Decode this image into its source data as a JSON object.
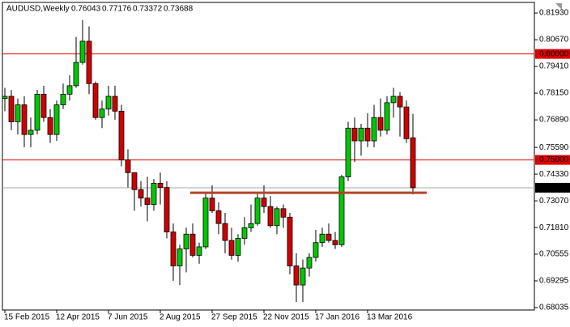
{
  "chart_data": {
    "type": "candlestick",
    "title": "AUDUSD,Weekly",
    "categories": [
      "15 Feb 2015",
      null,
      null,
      null,
      null,
      null,
      null,
      null,
      "12 Apr 2015",
      null,
      null,
      null,
      null,
      null,
      null,
      null,
      "7 Jun 2015",
      null,
      null,
      null,
      null,
      null,
      null,
      null,
      "2 Aug 2015",
      null,
      null,
      null,
      null,
      null,
      null,
      null,
      "27 Sep 2015",
      null,
      null,
      null,
      null,
      null,
      null,
      null,
      "22 Nov 2015",
      null,
      null,
      null,
      null,
      null,
      null,
      null,
      "17 Jan 2016",
      null,
      null,
      null,
      null,
      null,
      null,
      null,
      "13 Mar 2016",
      null,
      null,
      null,
      null,
      null,
      null,
      null
    ],
    "open": [
      0.779,
      0.78,
      0.768,
      0.776,
      0.762,
      0.764,
      0.781,
      0.77,
      0.762,
      0.776,
      0.781,
      0.785,
      0.796,
      0.806,
      0.786,
      0.77,
      0.774,
      0.78,
      0.773,
      0.75,
      0.744,
      0.736,
      0.732,
      0.729,
      0.739,
      0.737,
      0.716,
      0.7,
      0.708,
      0.715,
      0.705,
      0.709,
      0.732,
      0.726,
      0.72,
      0.712,
      0.705,
      0.713,
      0.718,
      0.72,
      0.732,
      0.728,
      0.719,
      0.727,
      0.723,
      0.7,
      0.691,
      0.699,
      0.704,
      0.711,
      0.715,
      0.712,
      0.71,
      0.742,
      0.765,
      0.759,
      0.765,
      0.759,
      0.77,
      0.764,
      0.777,
      0.78,
      0.775,
      0.76043
    ],
    "high": [
      0.784,
      0.783,
      0.779,
      0.78,
      0.77,
      0.783,
      0.785,
      0.774,
      0.778,
      0.786,
      0.79,
      0.808,
      0.816,
      0.813,
      0.787,
      0.778,
      0.785,
      0.785,
      0.776,
      0.755,
      0.744,
      0.74,
      0.742,
      0.741,
      0.744,
      0.74,
      0.72,
      0.71,
      0.718,
      0.72,
      0.711,
      0.735,
      0.738,
      0.73,
      0.725,
      0.718,
      0.715,
      0.723,
      0.729,
      0.734,
      0.738,
      0.733,
      0.728,
      0.729,
      0.725,
      0.706,
      0.703,
      0.706,
      0.717,
      0.718,
      0.72,
      0.716,
      0.743,
      0.768,
      0.77,
      0.767,
      0.772,
      0.776,
      0.779,
      0.78,
      0.784,
      0.782,
      0.778,
      0.77176
    ],
    "low": [
      0.773,
      0.764,
      0.762,
      0.756,
      0.756,
      0.762,
      0.768,
      0.758,
      0.759,
      0.774,
      0.778,
      0.784,
      0.795,
      0.781,
      0.769,
      0.765,
      0.771,
      0.769,
      0.747,
      0.737,
      0.726,
      0.728,
      0.721,
      0.726,
      0.729,
      0.713,
      0.693,
      0.691,
      0.697,
      0.704,
      0.701,
      0.708,
      0.725,
      0.715,
      0.706,
      0.703,
      0.702,
      0.71,
      0.716,
      0.719,
      0.725,
      0.718,
      0.715,
      0.718,
      0.696,
      0.683,
      0.683,
      0.695,
      0.702,
      0.709,
      0.711,
      0.708,
      0.709,
      0.74,
      0.749,
      0.752,
      0.756,
      0.756,
      0.761,
      0.762,
      0.77,
      0.761,
      0.758,
      0.73372
    ],
    "close": [
      0.78,
      0.768,
      0.776,
      0.762,
      0.764,
      0.781,
      0.77,
      0.762,
      0.776,
      0.781,
      0.785,
      0.796,
      0.806,
      0.786,
      0.77,
      0.774,
      0.78,
      0.773,
      0.75,
      0.744,
      0.736,
      0.732,
      0.729,
      0.739,
      0.737,
      0.716,
      0.7,
      0.708,
      0.715,
      0.705,
      0.709,
      0.732,
      0.726,
      0.72,
      0.712,
      0.705,
      0.713,
      0.718,
      0.72,
      0.732,
      0.728,
      0.719,
      0.727,
      0.723,
      0.7,
      0.691,
      0.699,
      0.704,
      0.711,
      0.715,
      0.712,
      0.71,
      0.742,
      0.765,
      0.759,
      0.765,
      0.759,
      0.77,
      0.764,
      0.777,
      0.78,
      0.775,
      0.76,
      0.73688
    ],
    "up_color": "#00c800",
    "down_color": "#d00000",
    "ylim": [
      0.6792,
      0.8243
    ],
    "yticks": [
      {
        "value": 0.8193,
        "label": "0.81930"
      },
      {
        "value": 0.8067,
        "label": "0.80670"
      },
      {
        "value": 0.7941,
        "label": "0.79410"
      },
      {
        "value": 0.7815,
        "label": "0.78150"
      },
      {
        "value": 0.7689,
        "label": "0.76890"
      },
      {
        "value": 0.7559,
        "label": "0.75590"
      },
      {
        "value": 0.7433,
        "label": "0.74330"
      },
      {
        "value": 0.7307,
        "label": "0.73070"
      },
      {
        "value": 0.7181,
        "label": "0.71810"
      },
      0.70555,
      0.69295,
      0.68035
    ],
    "levels": [
      {
        "value": 0.8,
        "label": "0.80000"
      },
      {
        "value": 0.75,
        "label": "0.75000"
      }
    ],
    "level_color": "#e00000",
    "support_line": 0.7345
  }
}
